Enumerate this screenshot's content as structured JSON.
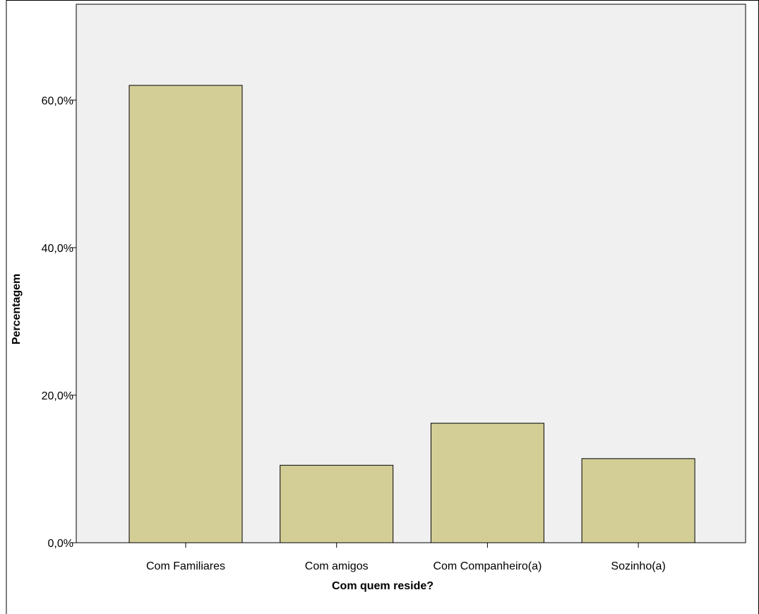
{
  "chart_data": {
    "type": "bar",
    "categories": [
      "Com Familiares",
      "Com amigos",
      "Com Companheiro(a)",
      "Sozinho(a)"
    ],
    "values": [
      62.0,
      10.5,
      16.2,
      11.4
    ],
    "xlabel": "Com quem reside?",
    "ylabel": "Percentagem",
    "ylim": [
      0,
      73
    ],
    "yticks": [
      0,
      20,
      40,
      60
    ],
    "ytick_labels": [
      "0,0%",
      "20,0%",
      "40,0%",
      "60,0%"
    ],
    "grid": false,
    "legend": "none",
    "colors": {
      "bar_fill": "#d3ce96",
      "bar_stroke": "#000000",
      "plot_background": "#f0f0f0"
    }
  }
}
